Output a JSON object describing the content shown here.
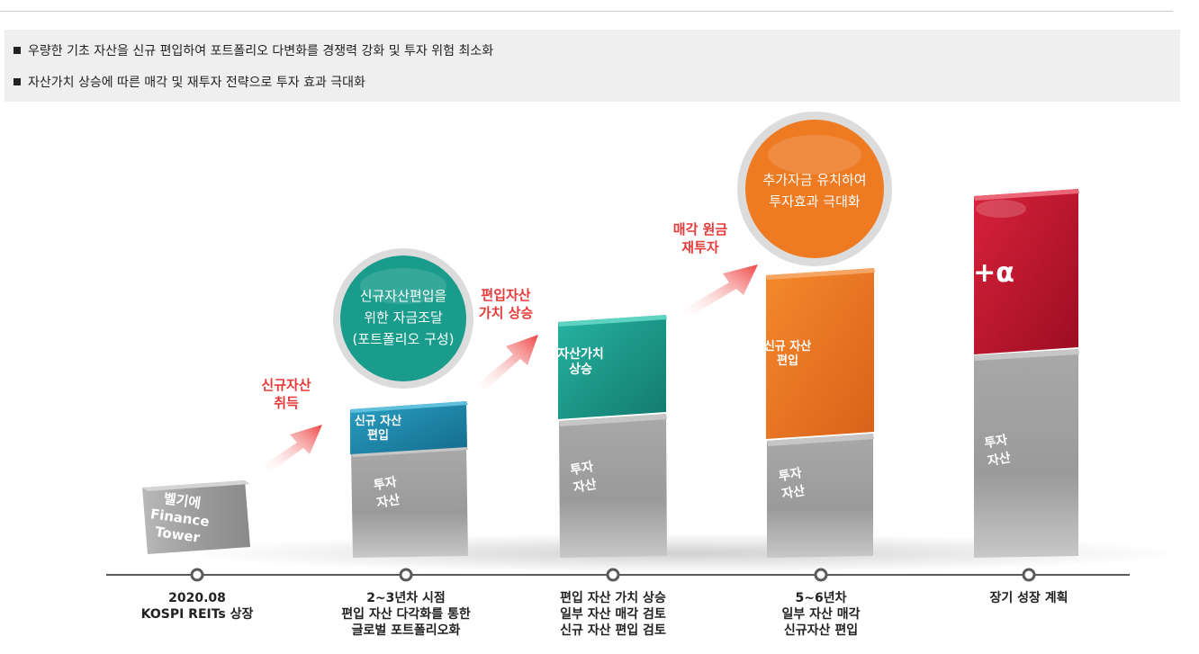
{
  "bullets": [
    "우량한 기초 자산을 신규 편입하여 포트폴리오 다변화를 경쟁력 강화 및 투자 위험 최소화",
    "자산가치 상승에 따른 매각 및 재투자 전략으로 투자 효과 극대화"
  ],
  "cube1": {
    "line1": "벨기에",
    "line2": "Finance",
    "line3": "Tower"
  },
  "cube2": {
    "top_line1": "신규 자산",
    "top_line2": "편입",
    "base_line1": "투자",
    "base_line2": "자산"
  },
  "cube3": {
    "top_line1": "자산가치",
    "top_line2": "상승",
    "base_line1": "투자",
    "base_line2": "자산"
  },
  "cube4": {
    "top_line1": "신규 자산",
    "top_line2": "편입",
    "base_line1": "투자",
    "base_line2": "자산"
  },
  "cube5": {
    "top_label": "+α",
    "base_line1": "투자",
    "base_line2": "자산"
  },
  "circle1": {
    "line1": "신규자산편입을",
    "line2": "위한 자금조달",
    "line3": "(포트폴리오 구성)"
  },
  "circle2": {
    "line1": "추가자금 유치하여",
    "line2": "투자효과 극대화"
  },
  "arrows": [
    {
      "line1": "신규자산",
      "line2": "취득"
    },
    {
      "line1": "편입자산",
      "line2": "가치 상승"
    },
    {
      "line1": "매각 원금",
      "line2": "재투자"
    }
  ],
  "timeline": [
    {
      "lines": [
        "2020.08",
        "KOSPI REITs 상장"
      ]
    },
    {
      "lines": [
        "2~3년차 시점",
        "편입 자산 다각화를 통한",
        "글로벌 포트폴리오화"
      ]
    },
    {
      "lines": [
        "편입 자산 가치 상승",
        "일부 자산 매각 검토",
        "신규 자산 편입 검토"
      ]
    },
    {
      "lines": [
        "5~6년차",
        "일부 자산 매각",
        "신규자산 편입"
      ]
    },
    {
      "lines": [
        "장기 성장 계획"
      ]
    }
  ],
  "colors": {
    "teal": "#1a9c8c",
    "orange": "#ee7a22",
    "red": "#c8102e",
    "blue": "#1e84a8",
    "arrow_text": "#e63a3a",
    "gray": "#a8a8a8"
  }
}
